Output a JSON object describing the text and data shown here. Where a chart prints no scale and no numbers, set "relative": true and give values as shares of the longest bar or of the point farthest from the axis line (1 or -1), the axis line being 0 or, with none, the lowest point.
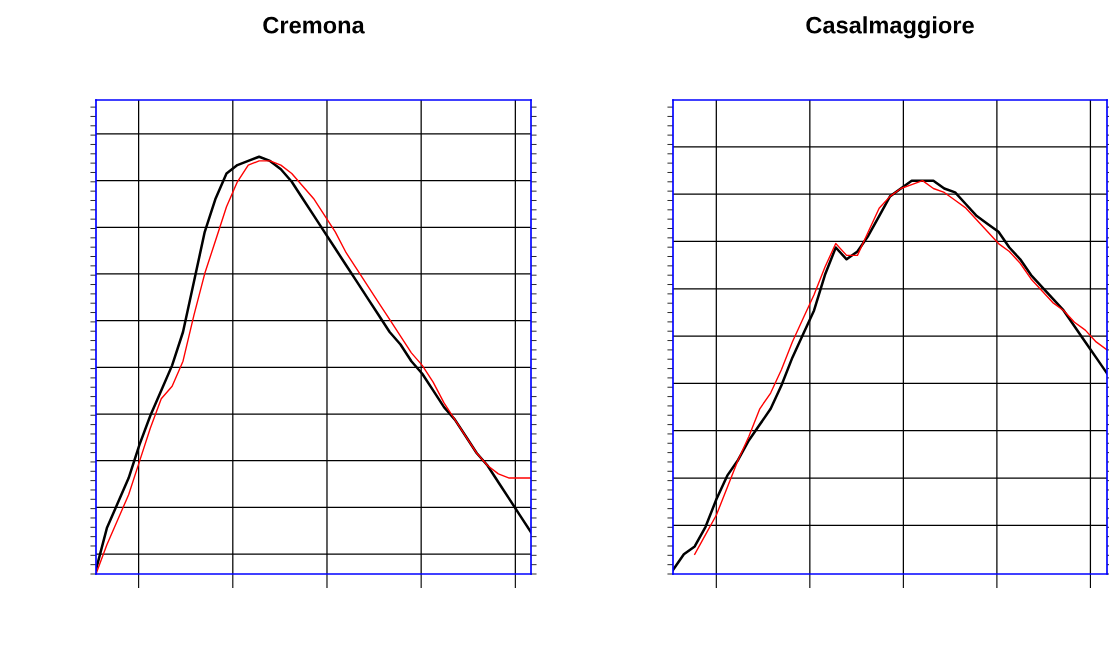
{
  "chart_data": [
    {
      "type": "line",
      "title": "Cremona",
      "relative": true,
      "grid": true,
      "legend": false,
      "categories": [
        null,
        null,
        null,
        null,
        null,
        null,
        null,
        null,
        null,
        null,
        null,
        null,
        null,
        null,
        null,
        null,
        null,
        null,
        null,
        null,
        null,
        null,
        null,
        null,
        null,
        null,
        null,
        null,
        null,
        null,
        null,
        null,
        null,
        null,
        null,
        null,
        null,
        null,
        null,
        null,
        null
      ],
      "series": [
        {
          "color": "#000000",
          "values": [
            0.01,
            0.11,
            0.17,
            0.23,
            0.31,
            0.38,
            0.44,
            0.5,
            0.58,
            0.7,
            0.82,
            0.9,
            0.96,
            0.98,
            0.99,
            1.0,
            0.99,
            0.97,
            0.94,
            0.9,
            0.86,
            0.82,
            0.78,
            0.74,
            0.7,
            0.66,
            0.62,
            0.58,
            0.55,
            0.51,
            0.48,
            0.44,
            0.4,
            0.37,
            0.33,
            0.29,
            0.26,
            0.22,
            0.18,
            0.14,
            0.1
          ]
        },
        {
          "color": "#ff0000",
          "values": [
            0,
            0.07,
            0.13,
            0.19,
            0.27,
            0.35,
            0.42,
            0.45,
            0.51,
            0.62,
            0.72,
            0.8,
            0.88,
            0.94,
            0.98,
            0.99,
            0.99,
            0.98,
            0.96,
            0.93,
            0.9,
            0.86,
            0.82,
            0.77,
            0.73,
            0.69,
            0.65,
            0.61,
            0.57,
            0.53,
            0.5,
            0.46,
            0.41,
            0.37,
            0.33,
            0.29,
            0.26,
            0.24,
            0.23,
            0.23,
            0.23
          ]
        }
      ]
    },
    {
      "type": "line",
      "title": "Casalmaggiore",
      "relative": true,
      "grid": true,
      "legend": false,
      "categories": [
        null,
        null,
        null,
        null,
        null,
        null,
        null,
        null,
        null,
        null,
        null,
        null,
        null,
        null,
        null,
        null,
        null,
        null,
        null,
        null,
        null,
        null,
        null,
        null,
        null,
        null,
        null,
        null,
        null,
        null,
        null,
        null,
        null,
        null,
        null,
        null,
        null,
        null,
        null,
        null,
        null
      ],
      "series": [
        {
          "color": "#000000",
          "values": [
            0.01,
            0.05,
            0.07,
            0.12,
            0.19,
            0.25,
            0.29,
            0.34,
            0.38,
            0.42,
            0.48,
            0.55,
            0.61,
            0.67,
            0.76,
            0.83,
            0.8,
            0.82,
            0.86,
            0.91,
            0.96,
            0.98,
            1.0,
            1.0,
            1.0,
            0.98,
            0.97,
            0.94,
            0.91,
            0.89,
            0.87,
            0.83,
            0.8,
            0.76,
            0.73,
            0.7,
            0.67,
            0.63,
            0.59,
            0.55,
            0.51
          ]
        },
        {
          "color": "#ff0000",
          "values": [
            null,
            null,
            0.05,
            0.1,
            0.15,
            0.22,
            0.29,
            0.35,
            0.42,
            0.46,
            0.52,
            0.59,
            0.65,
            0.71,
            0.78,
            0.84,
            0.81,
            0.81,
            0.87,
            0.93,
            0.96,
            0.98,
            0.99,
            1.0,
            0.98,
            0.97,
            0.95,
            0.93,
            0.9,
            0.87,
            0.84,
            0.82,
            0.79,
            0.75,
            0.72,
            0.69,
            0.67,
            0.64,
            0.62,
            0.59,
            0.57
          ]
        }
      ]
    }
  ]
}
